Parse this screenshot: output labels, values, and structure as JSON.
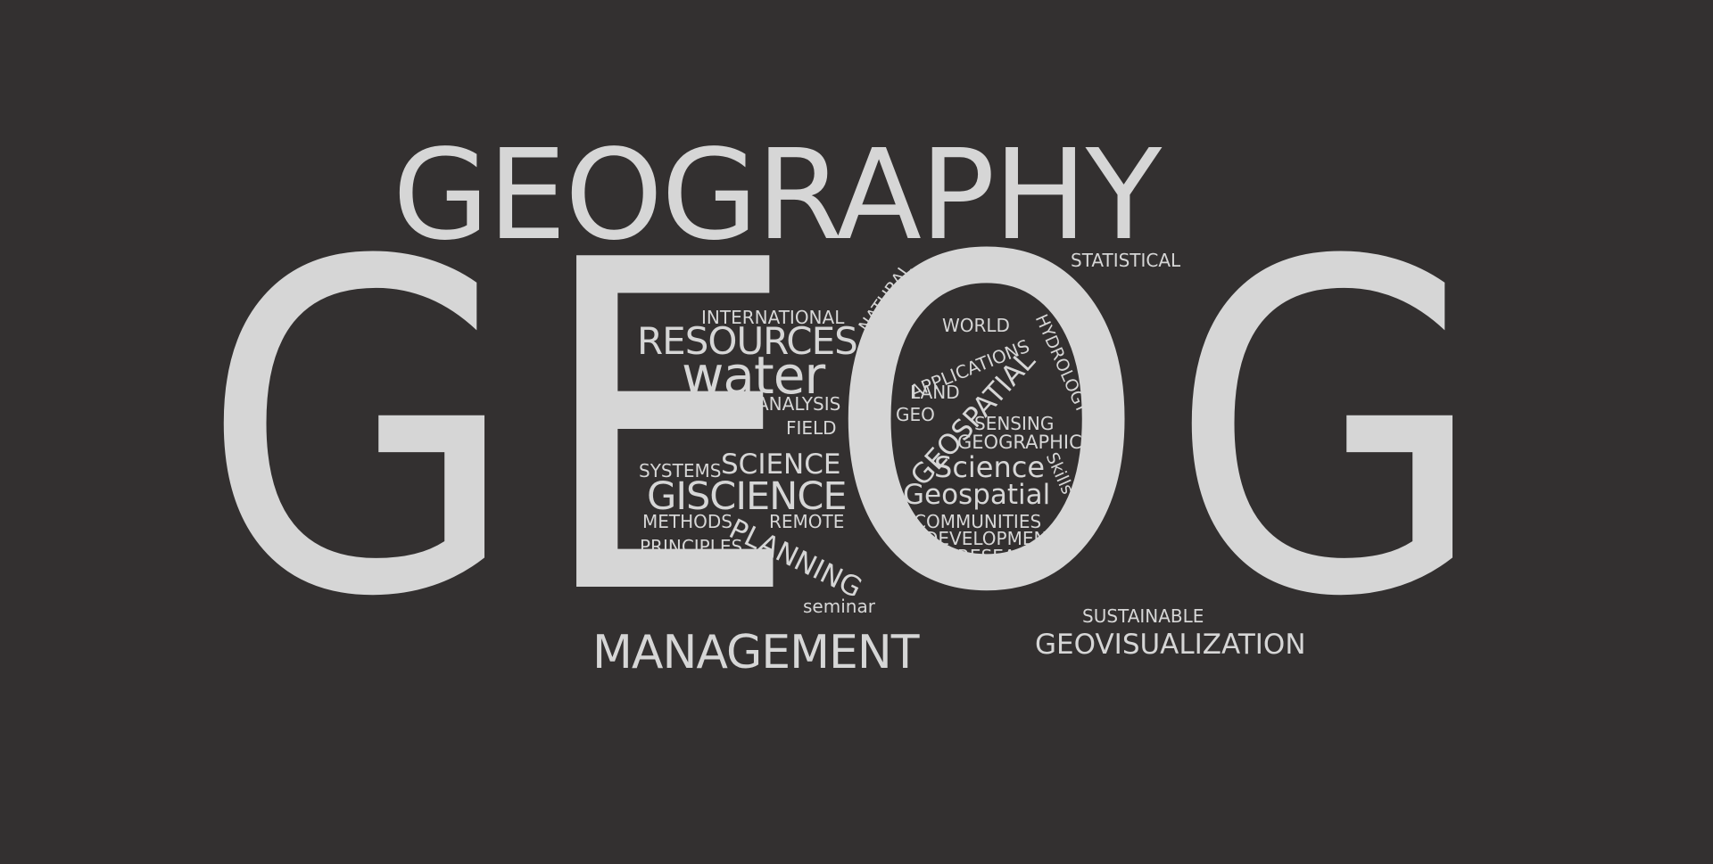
{
  "colors": {
    "background": "#333030",
    "text": "#d6d6d6"
  },
  "headline": "GEOGRAPHY",
  "letters": {
    "g1": "G",
    "e": "E",
    "o": "O",
    "g2": "G"
  },
  "words": {
    "statistical": "STATISTICAL",
    "natural": "NATURAL",
    "international": "INTERNATIONAL",
    "resources_caps": "RESOURCES",
    "water": "water",
    "analysis": "ANALYSIS",
    "field": "FIELD",
    "systems": "SYSTEMS",
    "science_caps": "SCIENCE",
    "giscience": "GISCIENCE",
    "methods": "METHODS",
    "remote": "REMOTE",
    "principles": "PRINCIPLES",
    "resources": "Resources",
    "planning": "PLANNING",
    "seminar": "seminar",
    "management": "MANAGEMENT",
    "world": "WORLD",
    "applications": "APPLICATIONS",
    "hydrology": "HYDROLOGY",
    "land": "LAND",
    "geo": "GEO",
    "geospatial_caps": "GEOSPATIAL",
    "sensing": "SENSING",
    "geographic": "GEOGRAPHIC",
    "science": "Science",
    "skills": "Skills",
    "geospatial": "Geospatial",
    "communities": "COMMUNITIES",
    "development": "DEVELOPMENT",
    "research": "RESEARCH",
    "sustainable": "SUSTAINABLE",
    "geovisualization": "GEOVISUALIZATION"
  }
}
